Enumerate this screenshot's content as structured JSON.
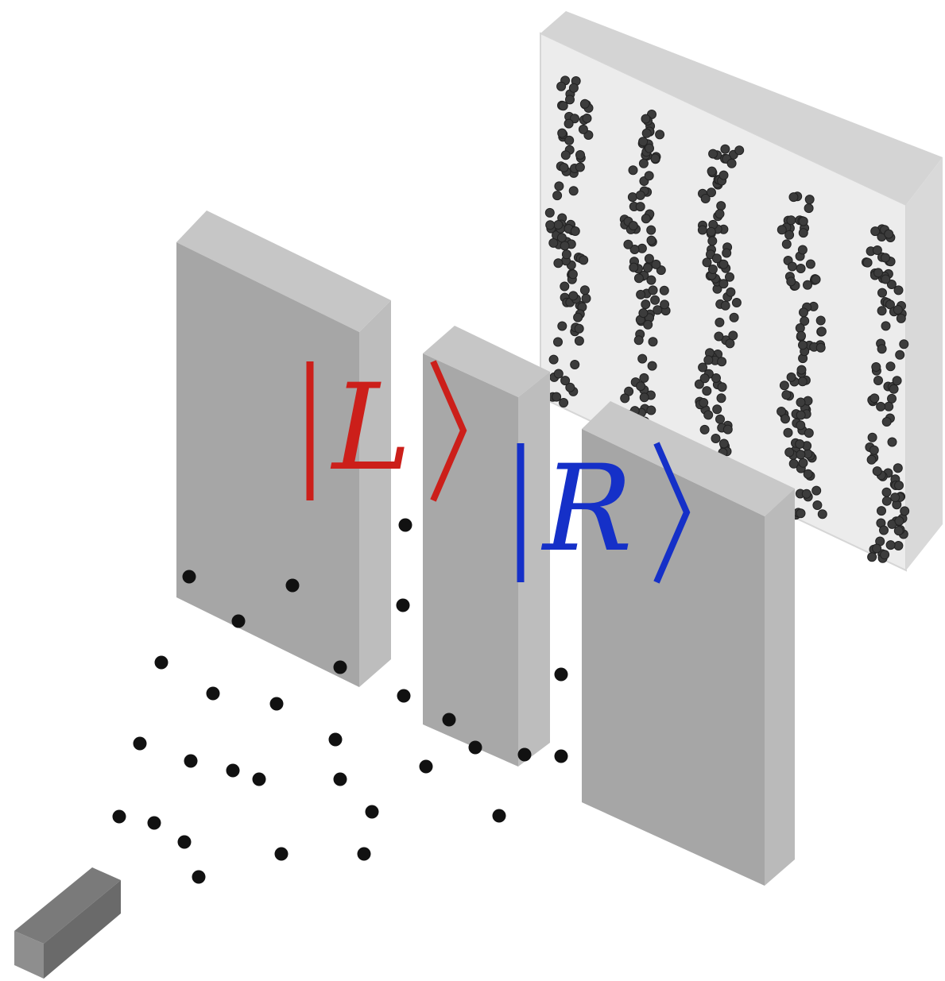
{
  "labels": {
    "left_state": {
      "letter": "L",
      "color": "#cc1f1a"
    },
    "right_state": {
      "letter": "R",
      "color": "#1530c8"
    }
  },
  "colors": {
    "background": "#ffffff",
    "particle": "#111111",
    "detection_screen": "#eeeeee",
    "barrier_front": "#a6a6a6",
    "barrier_side": "#b9b9b9",
    "barrier_top": "#c4c4c4",
    "source_block": "#6e6e6e"
  },
  "icons": {
    "particle_source": "source-block",
    "barrier": "slit-barrier-block",
    "screen": "detection-screen",
    "particles": "particle-dot",
    "fringes": "interference-fringe"
  },
  "fringe_count": 5
}
